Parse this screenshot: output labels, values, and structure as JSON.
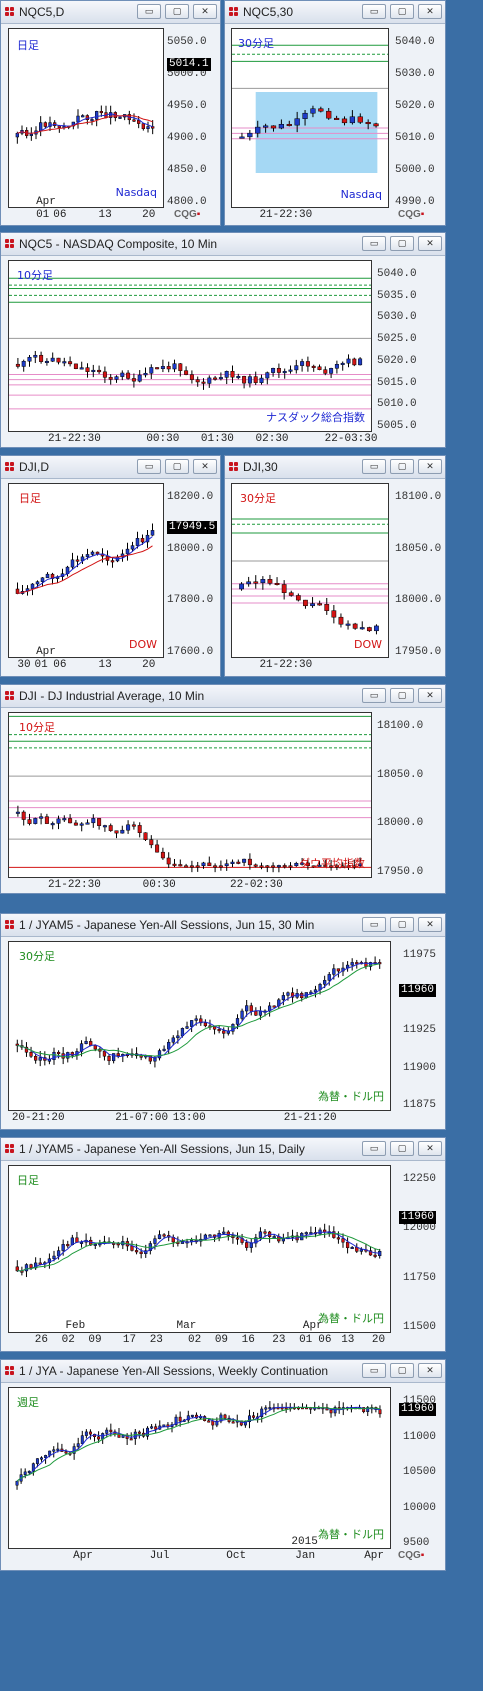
{
  "colors": {
    "up": "#1e3cc8",
    "down": "#d21414",
    "blue_label": "#1e28d2",
    "red_label": "#d21414",
    "green_label": "#1e8c1e",
    "resist": "#1e9a3c",
    "support": "#e68cc8"
  },
  "icons": {
    "restore": "restore-icon",
    "maximize": "maximize-icon",
    "close": "close-icon"
  },
  "windows": [
    {
      "title": "NQC5,D",
      "corner": "日足",
      "watermark": "Nasdaq",
      "cqg": "CQG",
      "price_tag": "5014.1",
      "yticks": [
        "5050.0",
        "5000.0",
        "4950.0",
        "4900.0",
        "4850.0",
        "4800.0"
      ],
      "xticks": [
        "01",
        "06",
        "13",
        "20"
      ],
      "xmonth": "Apr"
    },
    {
      "title": "NQC5,30",
      "corner": "30分足",
      "watermark": "Nasdaq",
      "cqg": "CQG",
      "yticks": [
        "5040.0",
        "5030.0",
        "5020.0",
        "5010.0",
        "5000.0",
        "4990.0"
      ],
      "xticks": [
        "21-22:30"
      ]
    },
    {
      "title": "NQC5 - NASDAQ Composite, 10 Min",
      "corner": "10分足",
      "watermark": "ナスダック総合指数",
      "yticks": [
        "5040.0",
        "5035.0",
        "5030.0",
        "5025.0",
        "5020.0",
        "5015.0",
        "5010.0",
        "5005.0"
      ],
      "xticks": [
        "21-22:30",
        "00:30",
        "01:30",
        "02:30",
        "22-03:30"
      ]
    },
    {
      "title": "DJI,D",
      "corner": "日足",
      "watermark": "DOW",
      "price_tag": "17949.5",
      "yticks": [
        "18200.0",
        "18000.0",
        "17800.0",
        "17600.0"
      ],
      "xticks": [
        "30",
        "01",
        "06",
        "13",
        "20"
      ],
      "xmonth": "Apr"
    },
    {
      "title": "DJI,30",
      "corner": "30分足",
      "watermark": "DOW",
      "yticks": [
        "18100.0",
        "18050.0",
        "18000.0",
        "17950.0"
      ],
      "xticks": [
        "21-22:30"
      ]
    },
    {
      "title": "DJI - DJ Industrial Average, 10 Min",
      "corner": "10分足",
      "watermark": "ダウ平均指数",
      "yticks": [
        "18100.0",
        "18050.0",
        "18000.0",
        "17950.0"
      ],
      "xticks": [
        "21-22:30",
        "00:30",
        "22-02:30"
      ]
    },
    {
      "title": "1 / JYAM5 - Japanese Yen-All Sessions, Jun 15, 30 Min",
      "corner": "30分足",
      "watermark": "為替・ドル円",
      "price_tag": "11960",
      "yticks": [
        "11975",
        "11950",
        "11925",
        "11900",
        "11875"
      ],
      "xticks": [
        "20-21:20",
        "21-07:00",
        "13:00",
        "21-21:20"
      ]
    },
    {
      "title": "1 / JYAM5 - Japanese Yen-All Sessions, Jun 15, Daily",
      "corner": "日足",
      "watermark": "為替・ドル円",
      "price_tag": "11960",
      "yticks": [
        "12250",
        "12000",
        "11750",
        "11500"
      ],
      "xticks": [
        "26",
        "02",
        "09",
        "17",
        "23",
        "02",
        "09",
        "16",
        "23",
        "01",
        "06",
        "13",
        "20"
      ],
      "xmonths": [
        "Feb",
        "Mar",
        "Apr"
      ]
    },
    {
      "title": "1 / JYA - Japanese Yen-All Sessions, Weekly Continuation",
      "corner": "週足",
      "watermark": "為替・ドル円",
      "cqg": "CQG",
      "price_tag": "11960",
      "yticks": [
        "11500",
        "11000",
        "10500",
        "10000",
        "9500"
      ],
      "xticks": [
        "Apr",
        "Jul",
        "Oct",
        "Jan",
        "Apr"
      ],
      "xyear": "2015"
    }
  ]
}
